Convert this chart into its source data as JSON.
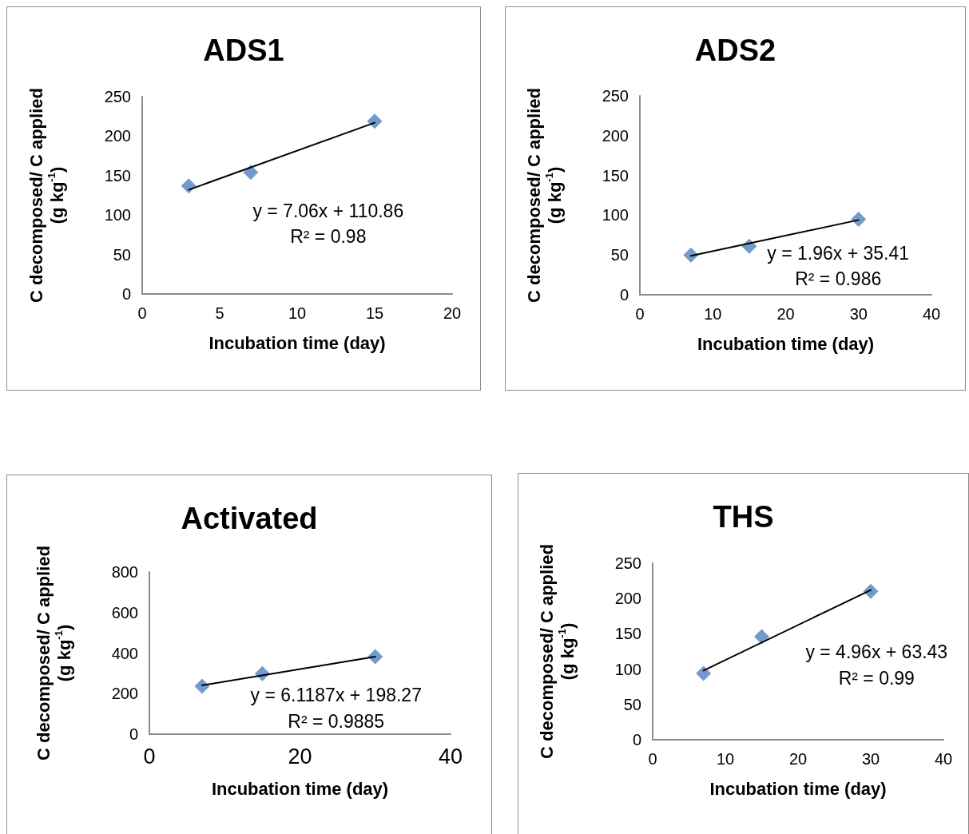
{
  "chart_data": [
    {
      "type": "scatter",
      "title": "ADS1",
      "xlabel": "Incubation time (day)",
      "ylabel": "C decomposed/ C applied\n(g kg$^{-1}$)",
      "marker": "diamond",
      "xlim": [
        0,
        20
      ],
      "xticks": [
        0,
        5,
        10,
        15,
        20
      ],
      "ylim": [
        0,
        250
      ],
      "yticks": [
        0,
        50,
        100,
        150,
        200,
        250
      ],
      "annotations": [
        "y = 7.06x + 110.86",
        "R² = 0.98"
      ],
      "series": [
        {
          "color": "#4f81bd",
          "x": [
            3,
            7,
            15
          ],
          "values": [
            137,
            154,
            219
          ]
        },
        {
          "type": "line",
          "color": "#000000",
          "marker": "none",
          "x": [
            3,
            15
          ],
          "values": [
            132,
            217
          ]
        }
      ]
    },
    {
      "type": "scatter",
      "title": "ADS2",
      "xlabel": "Incubation time (day)",
      "ylabel": "C decomposed/ C applied\n(g kg$^{-1}$)",
      "marker": "diamond",
      "xlim": [
        0,
        40
      ],
      "xticks": [
        0,
        10,
        20,
        30,
        40
      ],
      "ylim": [
        0,
        250
      ],
      "yticks": [
        0,
        50,
        100,
        150,
        200,
        250
      ],
      "annotations": [
        "y = 1.96x + 35.41",
        "R² = 0.986"
      ],
      "series": [
        {
          "color": "#4f81bd",
          "x": [
            7,
            15,
            30
          ],
          "values": [
            50,
            61,
            95
          ]
        },
        {
          "type": "line",
          "color": "#000000",
          "marker": "none",
          "x": [
            7,
            30
          ],
          "values": [
            49,
            94
          ]
        }
      ]
    },
    {
      "type": "scatter",
      "title": "Activated",
      "xlabel": "Incubation time (day)",
      "ylabel": "C decomposed/ C applied\n(g kg$^{-1}$)",
      "marker": "diamond",
      "xlim": [
        0,
        40
      ],
      "xticks": [
        0,
        20,
        40
      ],
      "ylim": [
        0,
        800
      ],
      "yticks": [
        0,
        200,
        400,
        600,
        800
      ],
      "annotations": [
        "y = 6.1187x + 198.27",
        "R² = 0.9885"
      ],
      "series": [
        {
          "color": "#4f81bd",
          "x": [
            7,
            15,
            30
          ],
          "values": [
            236,
            299,
            382
          ]
        },
        {
          "type": "line",
          "color": "#000000",
          "marker": "none",
          "x": [
            7,
            30
          ],
          "values": [
            241,
            382
          ]
        }
      ]
    },
    {
      "type": "scatter",
      "title": "THS",
      "xlabel": "Incubation time (day)",
      "ylabel": "C decomposed/ C applied\n(g kg$^{-1}$)",
      "marker": "diamond",
      "xlim": [
        0,
        40
      ],
      "xticks": [
        0,
        10,
        20,
        30,
        40
      ],
      "ylim": [
        0,
        250
      ],
      "yticks": [
        0,
        50,
        100,
        150,
        200,
        250
      ],
      "annotations": [
        "y = 4.96x + 63.43",
        "R² = 0.99"
      ],
      "series": [
        {
          "color": "#4f81bd",
          "x": [
            7,
            15,
            30
          ],
          "values": [
            94,
            146,
            210
          ]
        },
        {
          "type": "line",
          "color": "#000000",
          "marker": "none",
          "x": [
            7,
            30
          ],
          "values": [
            98,
            212
          ]
        }
      ]
    }
  ]
}
